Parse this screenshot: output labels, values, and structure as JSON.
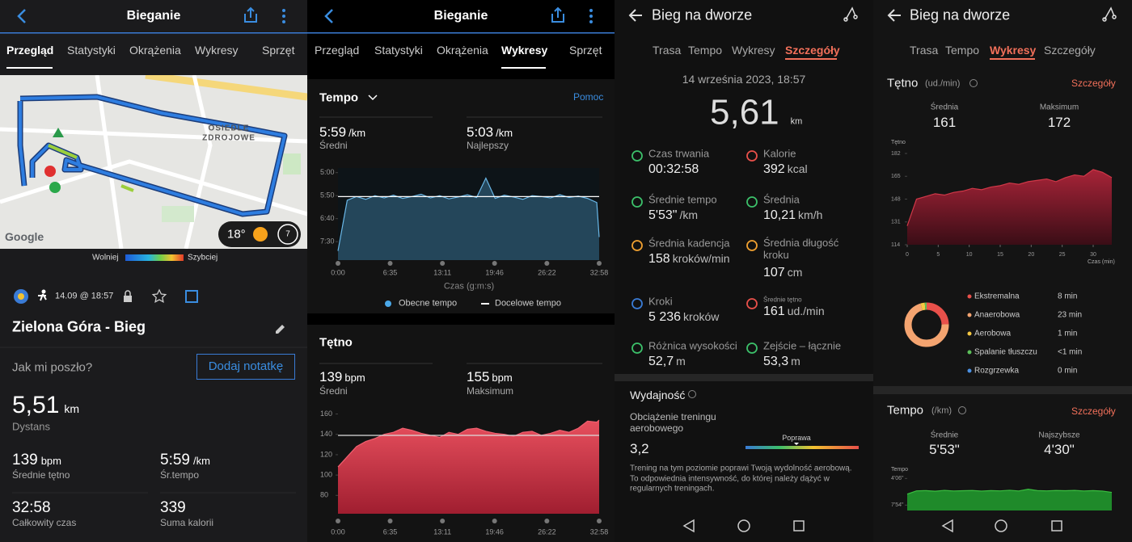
{
  "garmin": {
    "header": {
      "title": "Bieganie"
    },
    "tabs": [
      "Przegląd",
      "Statystyki",
      "Okrążenia",
      "Wykresy",
      "Sprzęt"
    ],
    "map": {
      "place": "OSIEDLE ZDROJOWE",
      "provider": "Google",
      "temperature": "18°",
      "badge": "7"
    },
    "speed_legend": {
      "slow": "Wolniej",
      "fast": "Szybciej"
    },
    "activity": {
      "date": "14.09 @ 18:57",
      "name": "Zielona Góra - Bieg",
      "question": "Jak mi poszło?",
      "button": "Dodaj notatkę"
    },
    "distance": {
      "value": "5,51",
      "unit": "km",
      "label": "Dystans"
    },
    "stats": [
      {
        "value": "139",
        "unit": "bpm",
        "label": "Średnie tętno"
      },
      {
        "value": "5:59",
        "unit": "/km",
        "label": "Śr.tempo"
      },
      {
        "value": "32:58",
        "label": "Całkowity czas"
      },
      {
        "value": "339",
        "label": "Suma kalorii"
      }
    ]
  },
  "garmin_charts": {
    "header": {
      "title": "Bieganie"
    },
    "tabs": [
      "Przegląd",
      "Statystyki",
      "Okrążenia",
      "Wykresy",
      "Sprzęt"
    ],
    "tempo": {
      "title": "Tempo",
      "help": "Pomoc",
      "stats": [
        {
          "value": "5:59",
          "unit": "/km",
          "label": "Średni"
        },
        {
          "value": "5:03",
          "unit": "/km",
          "label": "Najlepszy"
        }
      ],
      "chart": {
        "xlim": [
          0,
          1978
        ],
        "ylim": [
          490,
          290
        ],
        "yticks": [
          {
            "value": 300,
            "label": "5:00"
          },
          {
            "value": 350,
            "label": "5:50"
          },
          {
            "value": 400,
            "label": "6:40"
          },
          {
            "value": 450,
            "label": "7:30"
          }
        ],
        "xticks": [
          {
            "value": 0,
            "label": "0:00"
          },
          {
            "value": 395,
            "label": "6:35"
          },
          {
            "value": 791,
            "label": "13:11"
          },
          {
            "value": 1186,
            "label": "19:46"
          },
          {
            "value": 1582,
            "label": "26:22"
          },
          {
            "value": 1978,
            "label": "32:58"
          }
        ],
        "x": [
          0,
          70,
          140,
          210,
          280,
          350,
          420,
          490,
          560,
          630,
          700,
          770,
          840,
          910,
          980,
          1050,
          1120,
          1190,
          1260,
          1330,
          1400,
          1470,
          1540,
          1610,
          1680,
          1750,
          1820,
          1890,
          1960,
          1978
        ],
        "values": [
          470,
          360,
          352,
          358,
          350,
          355,
          349,
          356,
          352,
          347,
          355,
          350,
          357,
          353,
          348,
          354,
          312,
          356,
          349,
          353,
          358,
          350,
          352,
          355,
          348,
          354,
          351,
          356,
          365,
          440
        ],
        "target": 352
      },
      "xlabel": "Czas (g:m:s)",
      "legend": [
        "Obecne tempo",
        "Docelowe tempo"
      ]
    },
    "hr": {
      "title": "Tętno",
      "stats": [
        {
          "value": "139",
          "unit": "bpm",
          "label": "Średni"
        },
        {
          "value": "155",
          "unit": "bpm",
          "label": "Maksimum"
        }
      ],
      "chart": {
        "xlim": [
          0,
          1978
        ],
        "ylim": [
          62,
          162
        ],
        "yticks": [
          80,
          100,
          120,
          140,
          160
        ],
        "xticks": [
          {
            "value": 0,
            "label": "0:00"
          },
          {
            "value": 395,
            "label": "6:35"
          },
          {
            "value": 791,
            "label": "13:11"
          },
          {
            "value": 1186,
            "label": "19:46"
          },
          {
            "value": 1582,
            "label": "26:22"
          },
          {
            "value": 1978,
            "label": "32:58"
          }
        ],
        "x": [
          0,
          70,
          140,
          210,
          280,
          350,
          420,
          490,
          560,
          630,
          700,
          770,
          840,
          910,
          980,
          1050,
          1120,
          1190,
          1260,
          1330,
          1400,
          1470,
          1540,
          1610,
          1680,
          1750,
          1820,
          1890,
          1960,
          1978
        ],
        "values": [
          108,
          118,
          128,
          133,
          136,
          140,
          142,
          146,
          144,
          141,
          139,
          137,
          142,
          140,
          145,
          146,
          143,
          141,
          140,
          138,
          142,
          143,
          139,
          141,
          144,
          142,
          146,
          153,
          152,
          154
        ],
        "target": 139
      }
    }
  },
  "huawei_details": {
    "header": {
      "title": "Bieg na dworze"
    },
    "tabs": [
      "Trasa",
      "Tempo",
      "Wykresy",
      "Szczegóły"
    ],
    "date": "14 września 2023, 18:57",
    "distance": {
      "value": "5,61",
      "unit": "km"
    },
    "metrics": [
      {
        "label": "Czas trwania",
        "value": "00:32:58"
      },
      {
        "label": "Kalorie",
        "value": "392",
        "unit": "kcal"
      },
      {
        "label": "Średnie tempo",
        "value": "5'53\"",
        "unit": "/km"
      },
      {
        "label": "Średnia",
        "value": "10,21",
        "unit": "km/h"
      },
      {
        "label": "Średnia kadencja",
        "value": "158",
        "unit": "kroków/min"
      },
      {
        "label": "Średnia długość kroku",
        "value": "107",
        "unit": "cm"
      },
      {
        "label": "Kroki",
        "value": "5 236",
        "unit": "kroków"
      },
      {
        "label": "Średnie tętno",
        "value": "161",
        "unit": "ud./min"
      },
      {
        "label": "Różnica wysokości",
        "value": "52,7",
        "unit": "m"
      },
      {
        "label": "Zejście – łącznie",
        "value": "53,3",
        "unit": "m"
      }
    ],
    "performance": {
      "title": "Wydajność",
      "label": "Obciążenie treningu aerobowego",
      "value": "3,2",
      "scale_label": "Poprawa",
      "description": "Trening na tym poziomie poprawi Twoją wydolność aerobową. To odpowiednia intensywność, do której należy dążyć w regularnych treningach."
    }
  },
  "huawei_charts": {
    "header": {
      "title": "Bieg na dworze"
    },
    "tabs": [
      "Trasa",
      "Tempo",
      "Wykresy",
      "Szczegóły"
    ],
    "hr": {
      "title": "Tętno",
      "unit": "(ud./min)",
      "link": "Szczegóły",
      "stats": [
        {
          "label": "Średnia",
          "value": "161"
        },
        {
          "label": "Maksimum",
          "value": "172"
        }
      ],
      "chart": {
        "ylabel": "Tętno",
        "xlabel": "Czas (min)",
        "xlim": [
          0,
          33
        ],
        "ylim": [
          114,
          182
        ],
        "yticks": [
          114,
          131,
          148,
          165,
          182
        ],
        "xticks": [
          0,
          5,
          10,
          15,
          20,
          25,
          30
        ],
        "x": [
          0,
          1.5,
          3,
          4.5,
          6,
          7.5,
          9,
          10.5,
          12,
          13.5,
          15,
          16.5,
          18,
          19.5,
          21,
          22.5,
          24,
          25.5,
          27,
          28.5,
          30,
          31.5,
          33
        ],
        "values": [
          128,
          148,
          150,
          152,
          151,
          153,
          154,
          156,
          155,
          157,
          158,
          160,
          159,
          161,
          162,
          163,
          161,
          164,
          166,
          165,
          170,
          168,
          164
        ]
      }
    },
    "zones": [
      {
        "name": "Ekstremalna",
        "color": "#e8504a",
        "minutes": 8,
        "value_label": "8 min"
      },
      {
        "name": "Anaerobowa",
        "color": "#f4a470",
        "minutes": 23,
        "value_label": "23 min"
      },
      {
        "name": "Aerobowa",
        "color": "#f5c842",
        "minutes": 1,
        "value_label": "1 min"
      },
      {
        "name": "Spalanie tłuszczu",
        "color": "#5cbf5a",
        "minutes": 0.5,
        "value_label": "<1 min"
      },
      {
        "name": "Rozgrzewka",
        "color": "#4a90e2",
        "minutes": 0,
        "value_label": "0 min"
      }
    ],
    "tempo": {
      "title": "Tempo",
      "unit": "(/km)",
      "link": "Szczegóły",
      "stats": [
        {
          "label": "Średnie",
          "value": "5'53\""
        },
        {
          "label": "Najszybsze",
          "value": "4'30\""
        }
      ],
      "chart": {
        "ylabel": "Tempo",
        "xlim": [
          0,
          33
        ],
        "ylim": [
          520,
          230
        ],
        "yticks": [
          {
            "value": 246,
            "label": "4'06\""
          },
          {
            "value": 474,
            "label": "7'54\""
          }
        ],
        "x": [
          0,
          1.5,
          3,
          4.5,
          6,
          7.5,
          9,
          10.5,
          12,
          13.5,
          15,
          16.5,
          18,
          19.5,
          21,
          22.5,
          24,
          25.5,
          27,
          28.5,
          30,
          31.5,
          33
        ],
        "values": [
          380,
          352,
          350,
          355,
          348,
          353,
          351,
          349,
          354,
          350,
          352,
          347,
          353,
          338,
          350,
          352,
          349,
          351,
          348,
          353,
          350,
          354,
          365
        ]
      }
    }
  }
}
